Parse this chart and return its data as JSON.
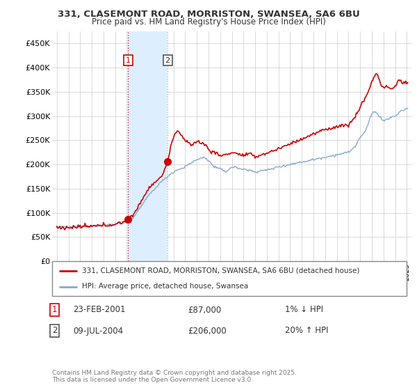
{
  "title_line1": "331, CLASEMONT ROAD, MORRISTON, SWANSEA, SA6 6BU",
  "title_line2": "Price paid vs. HM Land Registry's House Price Index (HPI)",
  "ylim": [
    0,
    475000
  ],
  "yticks": [
    0,
    50000,
    100000,
    150000,
    200000,
    250000,
    300000,
    350000,
    400000,
    450000
  ],
  "ytick_labels": [
    "£0",
    "£50K",
    "£100K",
    "£150K",
    "£200K",
    "£250K",
    "£300K",
    "£350K",
    "£400K",
    "£450K"
  ],
  "legend_line1": "331, CLASEMONT ROAD, MORRISTON, SWANSEA, SA6 6BU (detached house)",
  "legend_line2": "HPI: Average price, detached house, Swansea",
  "sale1_date": "23-FEB-2001",
  "sale1_price": "£87,000",
  "sale1_hpi": "1% ↓ HPI",
  "sale1_year": 2001.12,
  "sale1_value": 87000,
  "sale2_date": "09-JUL-2004",
  "sale2_price": "£206,000",
  "sale2_hpi": "20% ↑ HPI",
  "sale2_year": 2004.5,
  "sale2_value": 206000,
  "red_line_color": "#cc0000",
  "blue_line_color": "#88aacc",
  "shade_color": "#ddeeff",
  "grid_color": "#cccccc",
  "background_color": "#ffffff",
  "footnote": "Contains HM Land Registry data © Crown copyright and database right 2025.\nThis data is licensed under the Open Government Licence v3.0."
}
